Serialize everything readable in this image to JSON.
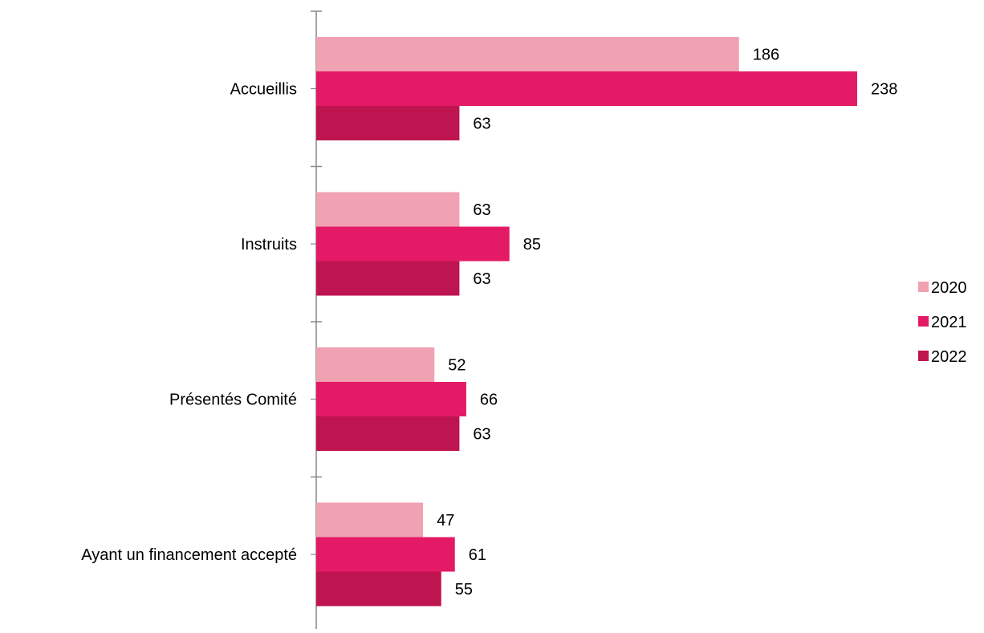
{
  "chart_data": {
    "type": "bar",
    "orientation": "horizontal",
    "title": "",
    "xlabel": "",
    "ylabel": "",
    "categories": [
      "Accueillis",
      "Instruits",
      "Présentés Comité",
      "Ayant un financement accepté"
    ],
    "series": [
      {
        "name": "2020",
        "color": "#f0a1b2",
        "values": [
          186,
          63,
          52,
          47
        ]
      },
      {
        "name": "2021",
        "color": "#e51a67",
        "values": [
          238,
          85,
          66,
          61
        ]
      },
      {
        "name": "2022",
        "color": "#be1450",
        "values": [
          63,
          63,
          63,
          55
        ]
      }
    ],
    "data_labels": true,
    "grid": false,
    "legend_position": "right",
    "axis_color": "#888888"
  }
}
